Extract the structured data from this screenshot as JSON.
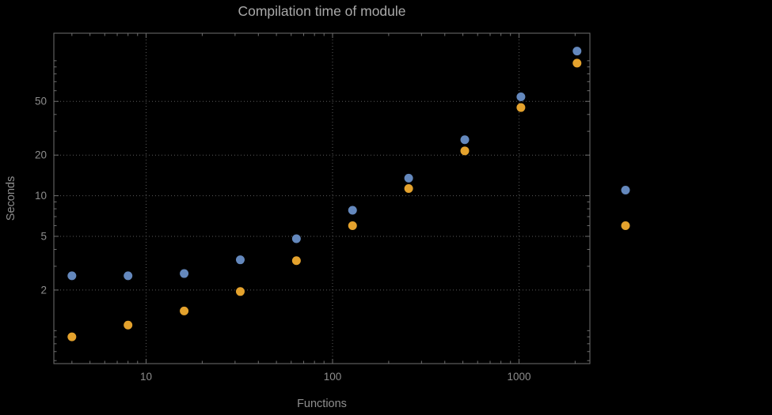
{
  "chart_data": {
    "type": "scatter",
    "title": "Compilation time of module",
    "xlabel": "Functions",
    "ylabel": "Seconds",
    "xscale": "log",
    "yscale": "log",
    "xlim": [
      3.2,
      2400
    ],
    "ylim": [
      0.57,
      160
    ],
    "grid": true,
    "x_gridlines": [
      10,
      100,
      1000
    ],
    "y_gridlines": [
      2,
      5,
      10,
      20,
      50
    ],
    "x_ticks": [
      {
        "value": 10,
        "label": "10"
      },
      {
        "value": 100,
        "label": "100"
      },
      {
        "value": 1000,
        "label": "1000"
      }
    ],
    "y_ticks": [
      {
        "value": 2,
        "label": "2"
      },
      {
        "value": 5,
        "label": "5"
      },
      {
        "value": 10,
        "label": "10"
      },
      {
        "value": 20,
        "label": "20"
      },
      {
        "value": 50,
        "label": "50"
      }
    ],
    "x": [
      4,
      8,
      16,
      32,
      64,
      128,
      256,
      512,
      1024,
      2048
    ],
    "series": [
      {
        "name": "series-1-blue",
        "color": "#6488bd",
        "values": [
          2.55,
          2.55,
          2.65,
          3.35,
          4.8,
          7.8,
          13.5,
          26,
          54,
          118
        ]
      },
      {
        "name": "series-2-orange",
        "color": "#e4a22d",
        "values": [
          0.9,
          1.1,
          1.4,
          1.95,
          3.3,
          6.0,
          11.3,
          21.5,
          45,
          96
        ]
      }
    ],
    "legend": {
      "position": "right-outside",
      "markers": [
        {
          "series": 0,
          "value": 11
        },
        {
          "series": 1,
          "value": 6
        }
      ]
    },
    "style": {
      "frame_color": "#6f6f6f",
      "grid_color": "#5a5a5a",
      "tick_label_color": "#8d8d8d",
      "grid_dash": "1 3",
      "point_radius": 5.5
    }
  }
}
